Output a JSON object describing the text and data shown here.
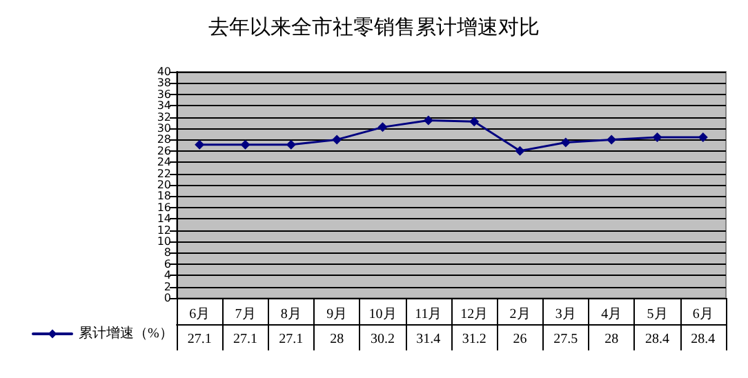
{
  "chart_data": {
    "type": "line",
    "title": "去年以来全市社零销售累计增速对比",
    "categories": [
      "6月",
      "7月",
      "8月",
      "9月",
      "10月",
      "11月",
      "12月",
      "2月",
      "3月",
      "4月",
      "5月",
      "6月"
    ],
    "series": [
      {
        "name": "累计增速（%）",
        "color": "#000080",
        "values": [
          27.1,
          27.1,
          27.1,
          28,
          30.2,
          31.4,
          31.2,
          26,
          27.5,
          28,
          28.4,
          28.4
        ]
      }
    ],
    "ylim": [
      0,
      40
    ],
    "yticks": [
      0,
      2,
      4,
      6,
      8,
      10,
      12,
      14,
      16,
      18,
      20,
      22,
      24,
      26,
      28,
      30,
      32,
      34,
      36,
      38,
      40
    ],
    "grid": "y",
    "legend": "bottom left",
    "marker": "diamond",
    "line_style": "solid",
    "data_labels": true
  }
}
